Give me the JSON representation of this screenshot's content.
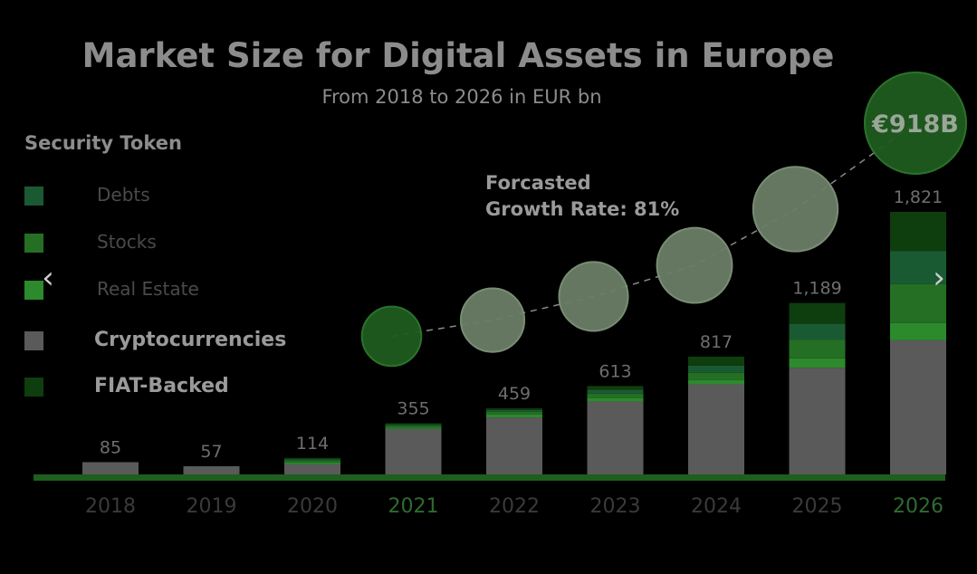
{
  "chart_data": {
    "type": "bar",
    "stacked": true,
    "title": "Market Size for Digital Assets in Europe",
    "subtitle": "From 2018 to 2026 in EUR bn",
    "categories": [
      "2018",
      "2019",
      "2020",
      "2021",
      "2022",
      "2023",
      "2024",
      "2025",
      "2026"
    ],
    "totals_labels": [
      "85",
      "57",
      "114",
      "355",
      "459",
      "613",
      "817",
      "1,189",
      "1,821"
    ],
    "totals": [
      85,
      57,
      114,
      355,
      459,
      613,
      817,
      1189,
      1821
    ],
    "highlighted_categories": [
      "2021",
      "2026"
    ],
    "series": [
      {
        "name": "Cryptocurrencies",
        "color": "#5a5a5a",
        "values": [
          85,
          57,
          70,
          315,
          395,
          505,
          625,
          740,
          930
        ]
      },
      {
        "name": "Real Estate",
        "color": "#2c8a2c",
        "values": [
          0,
          0,
          12,
          10,
          20,
          25,
          30,
          65,
          120
        ]
      },
      {
        "name": "Stocks",
        "color": "#246f24",
        "values": [
          0,
          0,
          12,
          12,
          20,
          30,
          50,
          130,
          270
        ]
      },
      {
        "name": "Debts",
        "color": "#1a5a32",
        "values": [
          0,
          0,
          10,
          8,
          12,
          28,
          50,
          110,
          230
        ]
      },
      {
        "name": "FIAT-Backed",
        "color": "#0e3e0e",
        "values": [
          0,
          0,
          10,
          10,
          12,
          25,
          62,
          144,
          271
        ]
      }
    ],
    "legend": {
      "heading": "Security Token",
      "placement": "left",
      "items": [
        {
          "label": "Debts",
          "color": "#1a5a32",
          "sub": true
        },
        {
          "label": "Stocks",
          "color": "#246f24",
          "sub": true
        },
        {
          "label": "Real Estate",
          "color": "#2c8a2c",
          "sub": true
        },
        {
          "label": "Cryptocurrencies",
          "color": "#5a5a5a",
          "sub": false
        },
        {
          "label": "FIAT-Backed",
          "color": "#0e3e0e",
          "sub": false
        }
      ]
    },
    "annotation": {
      "line1": "Forcasted",
      "line2": "Growth Rate: 81%"
    },
    "growth_bubbles": {
      "categories": [
        "2021",
        "2022",
        "2023",
        "2024",
        "2025",
        "2026"
      ],
      "final_label": "€918B"
    },
    "ylim": [
      0,
      1900
    ],
    "grid": false
  },
  "nav": {
    "prev_symbol": "‹",
    "next_symbol": "›"
  },
  "colors": {
    "background": "#000000",
    "text": "#8c8c8c",
    "axis": "#1e5e1e",
    "highlight_year": "#2f6b2f",
    "year": "#3a3a3a"
  }
}
